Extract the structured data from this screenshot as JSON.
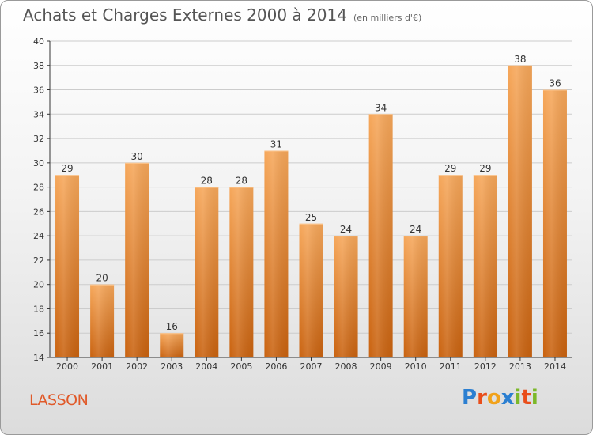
{
  "title": "Achats et Charges Externes 2000 à 2014",
  "subtitle": "(en milliers d'€)",
  "commune": "LASSON",
  "brand": {
    "letters": [
      "P",
      "r",
      "o",
      "x",
      "i",
      "t",
      "i"
    ],
    "colors": [
      "#2b7fd1",
      "#e94e1b",
      "#f1a21b",
      "#2b7fd1",
      "#7cb829",
      "#e94e1b",
      "#7cb829"
    ]
  },
  "colors": {
    "bar_top": "#f6a75a",
    "bar_bottom": "#c9620f",
    "axis": "#333333",
    "grid": "#cccccc"
  },
  "chart_data": {
    "type": "bar",
    "title": "Achats et Charges Externes 2000 à 2014",
    "subtitle": "(en milliers d'€)",
    "categories": [
      "2000",
      "2001",
      "2002",
      "2003",
      "2004",
      "2005",
      "2006",
      "2007",
      "2008",
      "2009",
      "2010",
      "2011",
      "2012",
      "2013",
      "2014"
    ],
    "values": [
      29,
      20,
      30,
      16,
      28,
      28,
      31,
      25,
      24,
      34,
      24,
      29,
      29,
      38,
      36
    ],
    "ylim": [
      14,
      40
    ],
    "yticks": [
      14,
      16,
      18,
      20,
      22,
      24,
      26,
      28,
      30,
      32,
      34,
      36,
      38,
      40
    ],
    "xlabel": "",
    "ylabel": "",
    "grid": true
  }
}
